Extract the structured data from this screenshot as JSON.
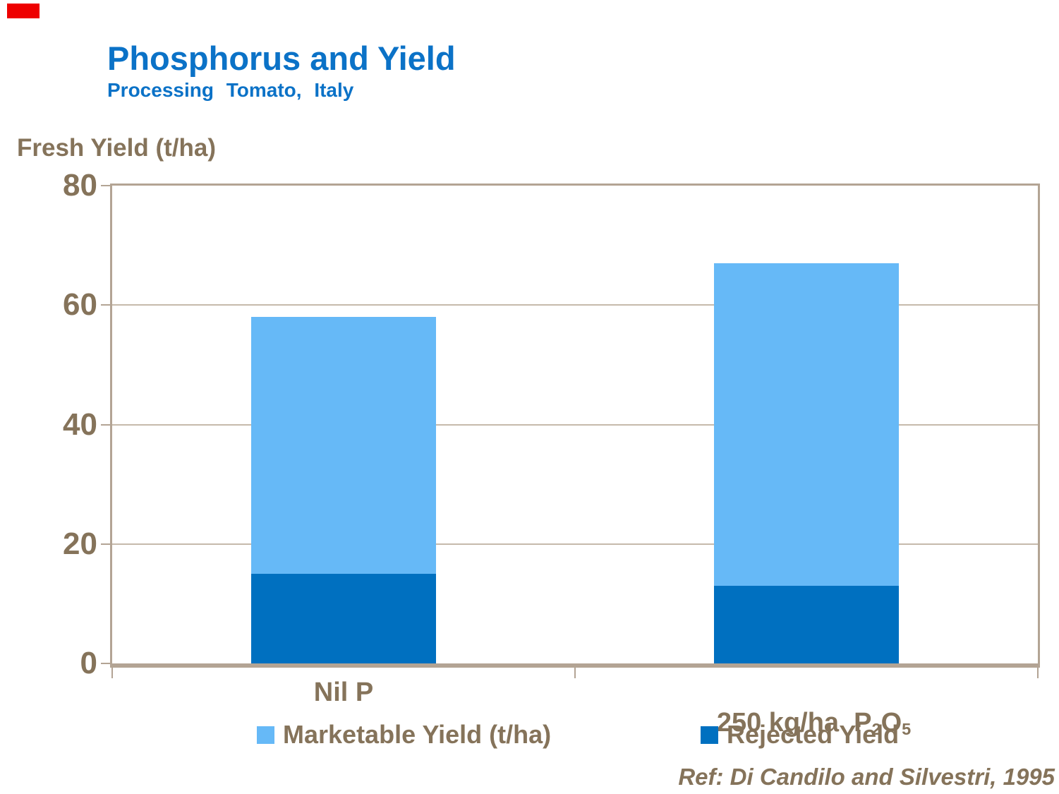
{
  "header": {
    "title": "Phosphorus and Yield",
    "subtitle": "Processing Tomato, Italy"
  },
  "footer": {
    "reference": "Ref: Di Candilo and Silvestri, 1995"
  },
  "colors": {
    "title_blue": "#0B72C7",
    "marketable_blue": "#66B9F7",
    "rejected_blue": "#0070C0",
    "text_taupe": "#85735A",
    "frame_tan": "#B3A494",
    "gridline_tan": "#C6BAAB",
    "red_mark": "#EE0000",
    "page_bg": "#FFFFFF"
  },
  "chart_data": {
    "type": "bar",
    "stacked": true,
    "title": "Phosphorus and Yield",
    "subtitle": "Processing Tomato, Italy",
    "ylabel": "Fresh Yield (t/ha)",
    "xlabel": "",
    "ylim": [
      0,
      80
    ],
    "yticks": [
      0,
      20,
      40,
      60,
      80
    ],
    "grid": true,
    "grid_values": [
      20,
      40,
      60
    ],
    "legend_position": "bottom",
    "categories": [
      "Nil P",
      "250 kg/ha P₂O₅"
    ],
    "category2_parts": {
      "pre": "250 kg/ha  P",
      "sub1": "2",
      "mid": "O",
      "sub2": "5"
    },
    "series": [
      {
        "name": "Rejected Yield",
        "values": [
          15,
          13
        ],
        "color": "#0070C0"
      },
      {
        "name": "Marketable Yield (t/ha)",
        "values": [
          43,
          54
        ],
        "color": "#66B9F7"
      }
    ],
    "totals": [
      58,
      67
    ],
    "legend": [
      "Marketable Yield (t/ha)",
      "Rejected Yield"
    ]
  }
}
